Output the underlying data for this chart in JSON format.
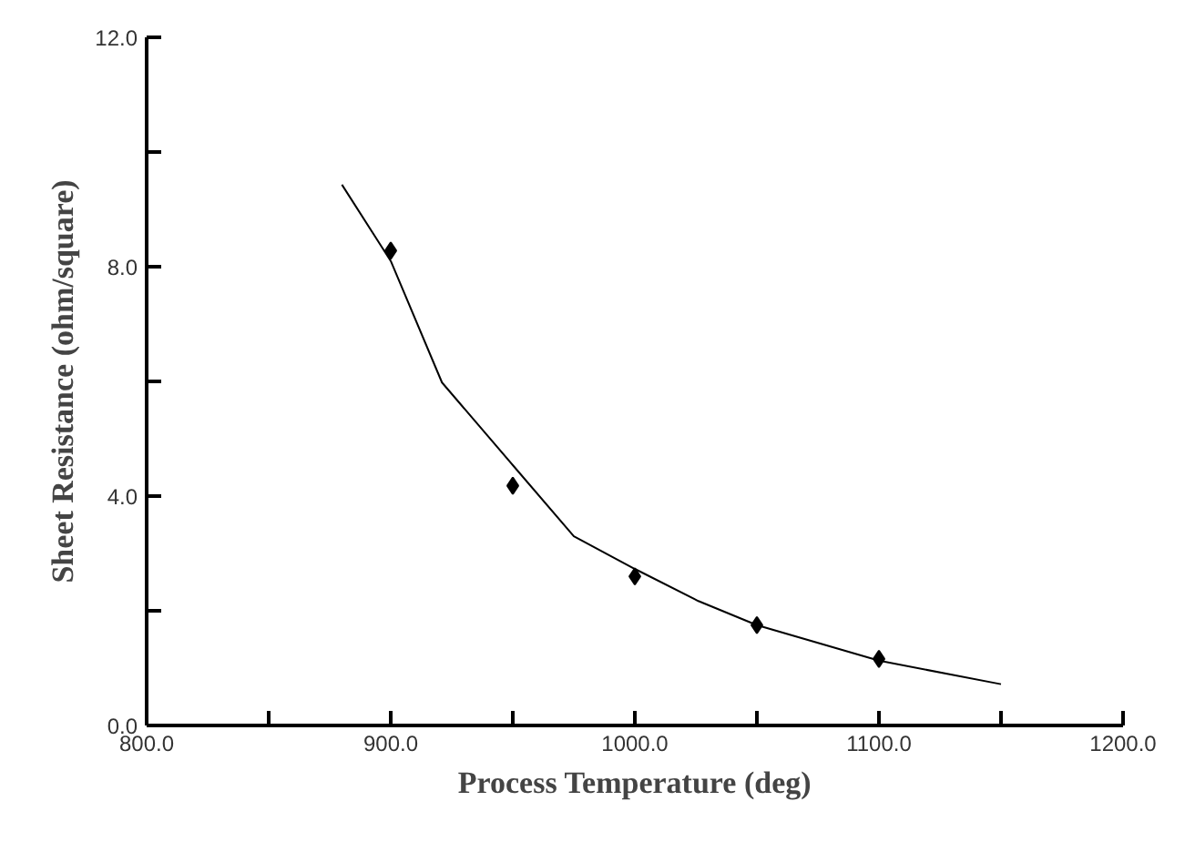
{
  "chart_data": {
    "type": "scatter",
    "xlabel": "Process Temperature (deg)",
    "ylabel": "Sheet Resistance (ohm/square)",
    "xlim": [
      800,
      1200
    ],
    "ylim": [
      0,
      12
    ],
    "xticks": [
      {
        "value": 800,
        "label": "800.0"
      },
      {
        "value": 850,
        "label": null
      },
      {
        "value": 900,
        "label": "900.0"
      },
      {
        "value": 950,
        "label": null
      },
      {
        "value": 1000,
        "label": "1000.0"
      },
      {
        "value": 1050,
        "label": null
      },
      {
        "value": 1100,
        "label": "1100.0"
      },
      {
        "value": 1150,
        "label": null
      },
      {
        "value": 1200,
        "label": "1200.0"
      }
    ],
    "yticks": [
      {
        "value": 0,
        "label": "0.0"
      },
      {
        "value": 2,
        "label": null
      },
      {
        "value": 4,
        "label": "4.0"
      },
      {
        "value": 6,
        "label": null
      },
      {
        "value": 8,
        "label": "8.0"
      },
      {
        "value": 10,
        "label": null
      },
      {
        "value": 12,
        "label": "12.0"
      }
    ],
    "grid": false,
    "marker": "diamond",
    "series": [
      {
        "color": "#000000",
        "x": [
          900,
          950,
          1000,
          1050,
          1100
        ],
        "values": [
          8.28,
          4.18,
          2.6,
          1.75,
          1.16
        ]
      },
      {
        "type": "line",
        "color": "#000000",
        "marker": "none",
        "x": [
          880,
          900,
          921,
          950,
          975,
          1000,
          1026,
          1050,
          1100,
          1150
        ],
        "values": [
          9.43,
          8.1,
          5.98,
          4.54,
          3.3,
          2.73,
          2.17,
          1.75,
          1.13,
          0.72
        ]
      }
    ]
  }
}
